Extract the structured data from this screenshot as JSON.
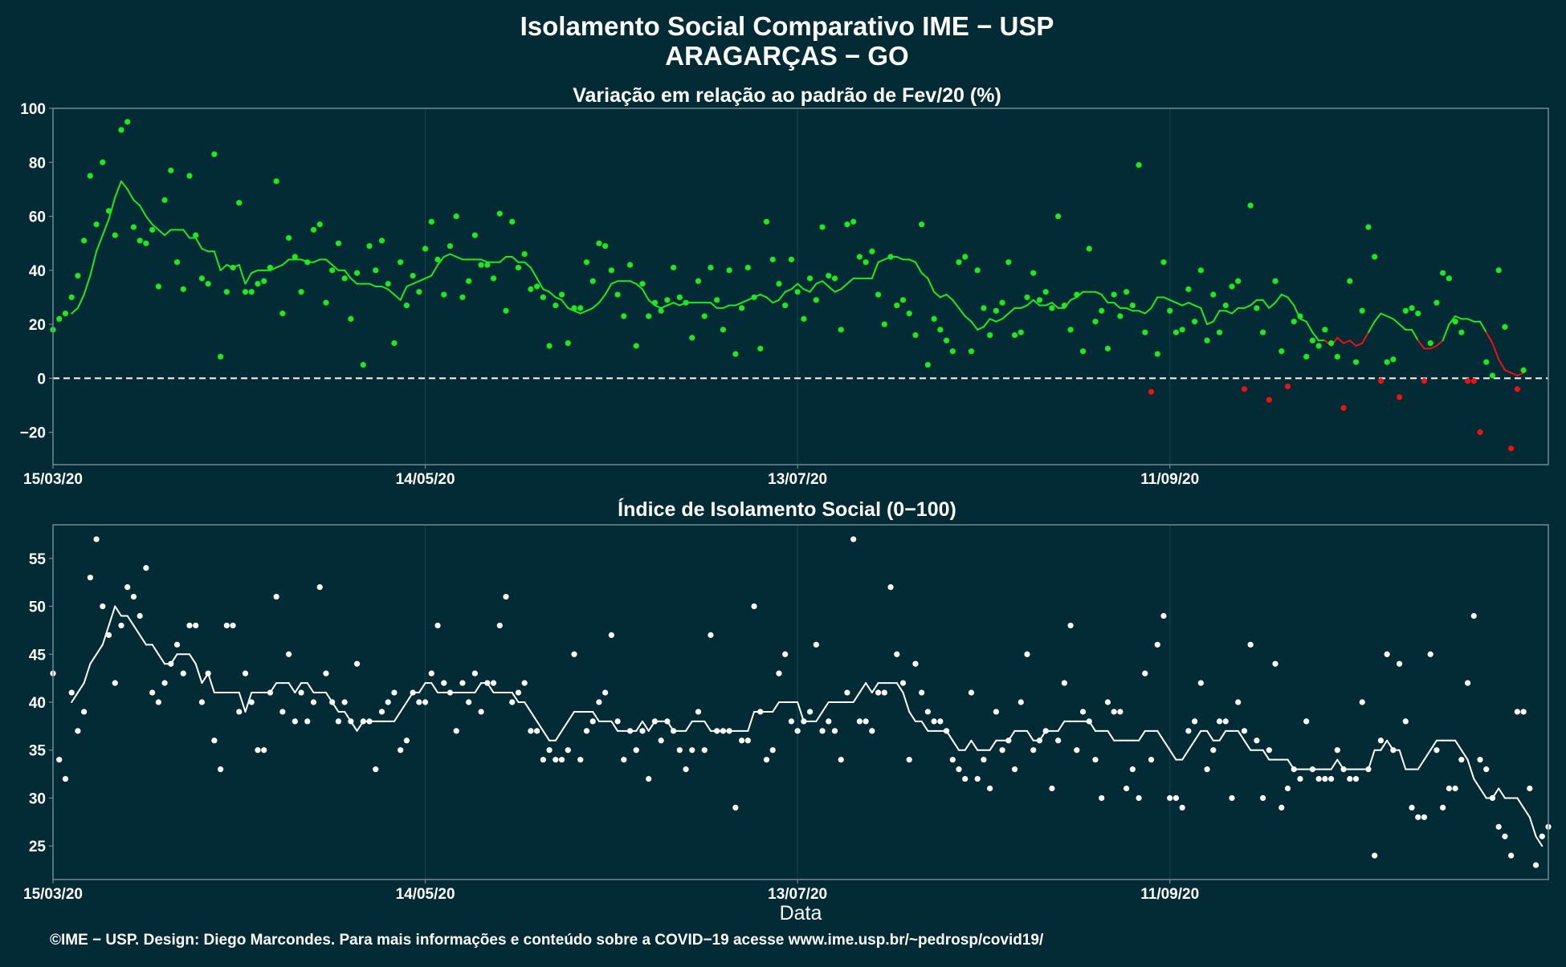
{
  "title": "Isolamento Social Comparativo IME − USP",
  "subtitle": "ARAGARÇAS − GO",
  "caption": "©IME − USP. Design: Diego Marcondes. Para mais informações e conteúdo sobre a COVID−19 acesse www.ime.usp.br/~pedrosp/covid19/",
  "colors": {
    "background": "#022b36",
    "panel_border": "#6e8b91",
    "grid": "#174049",
    "positive": "#1ee81e",
    "negative": "#ee1111",
    "index": "#ffffff",
    "text": "#ffffff"
  },
  "chart_data": [
    {
      "type": "scatter",
      "title": "Variação em relação ao padrão de Fev/20 (%)",
      "xlabel": "",
      "ylabel": "",
      "x_start": "2020-03-15",
      "x_end": "2020-11-11",
      "x_ticks": [
        "15/03/20",
        "14/05/20",
        "13/07/20",
        "11/09/20"
      ],
      "ylim": [
        -32,
        100
      ],
      "y_ticks": [
        -20,
        0,
        20,
        40,
        60,
        80,
        100
      ],
      "reference_line": 0,
      "grid": true,
      "series": [
        {
          "kind": "points",
          "values": [
            18,
            22,
            24,
            30,
            38,
            51,
            75,
            57,
            80,
            62,
            53,
            92,
            95,
            56,
            51,
            50,
            55,
            34,
            66,
            77,
            43,
            33,
            75,
            53,
            37,
            35,
            83,
            8,
            32,
            41,
            65,
            32,
            32,
            35,
            36,
            41,
            73,
            24,
            52,
            45,
            32,
            43,
            55,
            57,
            28,
            40,
            50,
            37,
            22,
            39,
            5,
            49,
            40,
            51,
            35,
            13,
            43,
            27,
            38,
            32,
            48,
            58,
            44,
            31,
            49,
            60,
            30,
            36,
            53,
            42,
            42,
            37,
            61,
            25,
            58,
            41,
            46,
            33,
            34,
            30,
            12,
            27,
            31,
            13,
            26,
            26,
            43,
            36,
            50,
            49,
            40,
            31,
            23,
            42,
            12,
            35,
            23,
            28,
            25,
            29,
            41,
            30,
            28,
            15,
            36,
            23,
            41,
            29,
            18,
            40,
            9,
            26,
            41,
            30,
            11,
            58,
            44,
            35,
            27,
            44,
            32,
            22,
            37,
            29,
            56,
            38,
            37,
            18,
            57,
            58,
            45,
            43,
            47,
            31,
            20,
            45,
            27,
            29,
            24,
            16,
            57,
            5,
            22,
            18,
            14,
            10,
            43,
            45,
            10,
            40,
            26,
            16,
            25,
            28,
            43,
            16,
            17,
            30,
            39,
            29,
            32,
            26,
            60,
            27,
            18,
            31,
            10,
            48,
            21,
            25,
            11,
            31,
            23,
            32,
            27,
            79,
            17,
            -5,
            9,
            43,
            25,
            17,
            18,
            33,
            21,
            40,
            14,
            31,
            17,
            27,
            34,
            36,
            -4,
            64,
            26,
            17,
            -8,
            36,
            10,
            -3,
            21,
            23,
            8,
            14,
            12,
            18,
            13,
            8,
            -11,
            36,
            6,
            25,
            56,
            45,
            -1,
            6,
            7,
            -7,
            25,
            26,
            24,
            -1,
            13,
            28,
            39,
            37,
            21,
            17,
            -1,
            -1,
            -20,
            6,
            1,
            40,
            19,
            -26,
            -4,
            3
          ]
        },
        {
          "kind": "moving_average",
          "values": [
            null,
            null,
            null,
            24,
            26,
            31,
            38,
            47,
            53,
            59,
            67,
            73,
            70,
            66,
            64,
            60,
            57,
            55,
            53,
            55,
            55,
            55,
            52,
            52,
            48,
            47,
            47,
            40,
            42,
            41,
            42,
            35,
            39,
            40,
            40,
            40,
            41,
            42,
            44,
            44,
            44,
            43,
            43,
            44,
            44,
            42,
            40,
            40,
            37,
            35,
            35,
            35,
            34,
            34,
            33,
            31,
            29,
            34,
            35,
            36,
            37,
            38,
            42,
            45,
            46,
            45,
            44,
            44,
            44,
            44,
            43,
            43,
            43,
            45,
            45,
            43,
            43,
            41,
            37,
            33,
            32,
            30,
            29,
            26,
            25,
            24,
            25,
            26,
            28,
            31,
            35,
            36,
            36,
            36,
            35,
            33,
            29,
            27,
            26,
            27,
            28,
            27,
            28,
            28,
            28,
            28,
            28,
            26,
            26,
            27,
            27,
            28,
            29,
            30,
            31,
            30,
            28,
            29,
            32,
            33,
            35,
            33,
            32,
            35,
            36,
            34,
            32,
            33,
            35,
            37,
            37,
            37,
            37,
            43,
            44,
            45,
            45,
            44,
            44,
            43,
            39,
            37,
            32,
            30,
            31,
            29,
            26,
            23,
            21,
            18,
            19,
            22,
            21,
            22,
            24,
            26,
            26,
            27,
            29,
            27,
            27,
            28,
            26,
            26,
            29,
            30,
            32,
            32,
            32,
            31,
            28,
            28,
            26,
            26,
            25,
            25,
            24,
            26,
            30,
            30,
            29,
            28,
            27,
            28,
            27,
            26,
            20,
            21,
            25,
            25,
            24,
            26,
            26,
            27,
            29,
            29,
            26,
            28,
            31,
            30,
            27,
            22,
            21,
            17,
            14,
            14,
            12,
            15,
            13,
            14,
            12,
            13,
            17,
            21,
            24,
            23,
            22,
            20,
            18,
            18,
            14,
            11,
            11,
            12,
            14,
            20,
            23,
            22,
            22,
            21,
            21,
            17,
            13,
            7,
            3,
            2,
            1,
            2
          ]
        }
      ]
    },
    {
      "type": "scatter",
      "title": "Índice de Isolamento Social (0−100)",
      "xlabel": "Data",
      "ylabel": "",
      "x_start": "2020-03-15",
      "x_end": "2020-11-11",
      "x_ticks": [
        "15/03/20",
        "14/05/20",
        "13/07/20",
        "11/09/20"
      ],
      "ylim": [
        21.5,
        58.5
      ],
      "y_ticks": [
        25,
        30,
        35,
        40,
        45,
        50,
        55
      ],
      "grid": true,
      "series": [
        {
          "kind": "points",
          "values": [
            43,
            34,
            32,
            41,
            37,
            39,
            53,
            57,
            50,
            47,
            42,
            48,
            52,
            51,
            49,
            54,
            41,
            40,
            42,
            44,
            46,
            43,
            48,
            48,
            40,
            43,
            36,
            33,
            48,
            48,
            39,
            43,
            40,
            35,
            35,
            41,
            51,
            39,
            45,
            38,
            41,
            38,
            40,
            52,
            43,
            40,
            38,
            40,
            38,
            44,
            38,
            38,
            33,
            39,
            40,
            41,
            35,
            36,
            41,
            40,
            40,
            43,
            48,
            42,
            41,
            37,
            42,
            40,
            43,
            39,
            42,
            42,
            48,
            51,
            40,
            41,
            42,
            37,
            37,
            34,
            35,
            34,
            34,
            35,
            45,
            34,
            37,
            38,
            40,
            41,
            47,
            38,
            34,
            37,
            35,
            37,
            32,
            38,
            36,
            38,
            37,
            35,
            33,
            35,
            39,
            35,
            47,
            37,
            37,
            37,
            29,
            36,
            36,
            50,
            39,
            34,
            35,
            43,
            45,
            38,
            37,
            38,
            39,
            46,
            37,
            38,
            37,
            34,
            41,
            57,
            38,
            38,
            37,
            41,
            41,
            52,
            45,
            42,
            34,
            44,
            41,
            39,
            38,
            38,
            37,
            34,
            33,
            32,
            41,
            32,
            34,
            31,
            39,
            35,
            36,
            33,
            40,
            45,
            35,
            36,
            37,
            31,
            36,
            42,
            48,
            35,
            39,
            38,
            34,
            30,
            40,
            39,
            39,
            31,
            33,
            30,
            43,
            34,
            46,
            49,
            30,
            30,
            29,
            37,
            38,
            42,
            33,
            35,
            38,
            38,
            30,
            40,
            37,
            46,
            36,
            30,
            35,
            44,
            29,
            31,
            33,
            32,
            38,
            33,
            32,
            32,
            32,
            35,
            33,
            32,
            32,
            40,
            33,
            24,
            36,
            45,
            35,
            44,
            38,
            29,
            28,
            28,
            45,
            35,
            29,
            31,
            31,
            34,
            42,
            49,
            34,
            33,
            30,
            27,
            26,
            24,
            39,
            39,
            31,
            23,
            26,
            27
          ]
        },
        {
          "kind": "moving_average",
          "values": [
            null,
            null,
            null,
            40,
            41,
            42,
            44,
            45,
            46,
            48,
            50,
            49,
            49,
            48,
            47,
            46,
            46,
            45,
            44,
            44,
            45,
            45,
            45,
            44,
            42,
            43,
            41,
            41,
            41,
            41,
            41,
            39,
            41,
            41,
            41,
            41,
            42,
            42,
            42,
            41,
            42,
            42,
            41,
            41,
            41,
            40,
            39,
            39,
            38,
            37,
            38,
            38,
            38,
            38,
            38,
            38,
            39,
            40,
            41,
            41,
            42,
            42,
            41,
            41,
            41,
            41,
            41,
            41,
            41,
            42,
            42,
            41,
            41,
            41,
            41,
            40,
            40,
            39,
            38,
            37,
            36,
            36,
            37,
            38,
            39,
            39,
            39,
            39,
            38,
            38,
            38,
            37,
            37,
            37,
            37,
            38,
            37,
            38,
            38,
            38,
            37,
            37,
            37,
            38,
            38,
            38,
            37,
            37,
            37,
            37,
            37,
            37,
            37,
            39,
            39,
            39,
            39,
            40,
            40,
            40,
            40,
            38,
            38,
            38,
            39,
            40,
            40,
            40,
            40,
            40,
            41,
            42,
            41,
            42,
            42,
            42,
            42,
            41,
            39,
            38,
            38,
            37,
            37,
            37,
            37,
            36,
            35,
            35,
            36,
            35,
            35,
            35,
            36,
            36,
            36,
            37,
            37,
            37,
            36,
            36,
            37,
            37,
            37,
            38,
            38,
            38,
            38,
            38,
            37,
            37,
            37,
            36,
            36,
            36,
            36,
            36,
            37,
            37,
            37,
            36,
            35,
            34,
            34,
            35,
            36,
            37,
            37,
            36,
            36,
            37,
            37,
            37,
            36,
            35,
            35,
            35,
            34,
            34,
            34,
            34,
            33,
            33,
            33,
            33,
            33,
            33,
            33,
            34,
            33,
            33,
            33,
            33,
            33,
            35,
            35,
            36,
            35,
            35,
            33,
            33,
            33,
            34,
            35,
            36,
            36,
            36,
            36,
            35,
            34,
            32,
            31,
            30,
            30,
            31,
            30,
            30,
            30,
            29,
            28,
            26,
            25
          ]
        }
      ]
    }
  ]
}
